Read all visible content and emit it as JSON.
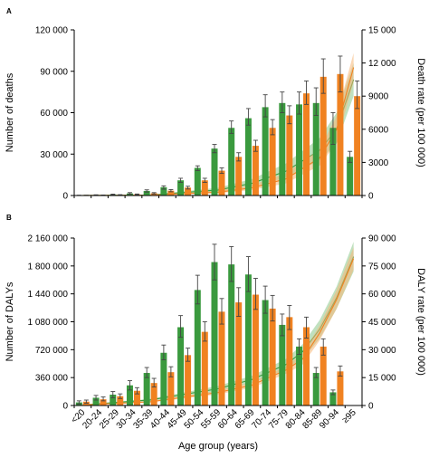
{
  "x_axis": {
    "title": "Age group (years)",
    "categories": [
      "<20",
      "20-24",
      "25-29",
      "30-34",
      "35-39",
      "40-44",
      "45-49",
      "50-54",
      "55-59",
      "60-64",
      "65-69",
      "70-74",
      "75-79",
      "80-84",
      "85-89",
      "90-94",
      "≥95"
    ]
  },
  "colors": {
    "male": "#3a9a3e",
    "female": "#f08221",
    "male_band": "#8cc88a",
    "female_band": "#f7b777"
  },
  "chart_data": [
    {
      "panel": "A",
      "type": "bar",
      "categories": [
        "<20",
        "20-24",
        "25-29",
        "30-34",
        "35-39",
        "40-44",
        "45-49",
        "50-54",
        "55-59",
        "60-64",
        "65-69",
        "70-74",
        "75-79",
        "80-84",
        "85-89",
        "90-94",
        "≥95"
      ],
      "y_left": {
        "label": "Number of deaths",
        "ylim": [
          0,
          120000
        ],
        "ticks": [
          0,
          30000,
          60000,
          90000,
          120000
        ],
        "tick_labels": [
          "0",
          "30 000",
          "60 000",
          "90 000",
          "120 000"
        ]
      },
      "y_right": {
        "label": "Death rate (per 100 000)",
        "ylim": [
          0,
          15000
        ],
        "ticks": [
          0,
          3000,
          6000,
          9000,
          12000,
          15000
        ],
        "tick_labels": [
          "0",
          "3000",
          "6000",
          "9000",
          "12 000",
          "15 000"
        ]
      },
      "series": [
        {
          "color_key": "male",
          "values": [
            100,
            300,
            700,
            1500,
            3300,
            6000,
            11000,
            20000,
            34000,
            49000,
            56000,
            64000,
            67000,
            66000,
            67000,
            49000,
            28000
          ],
          "err_low": [
            50,
            150,
            400,
            900,
            2500,
            4600,
            9500,
            18000,
            31000,
            45000,
            51000,
            57000,
            60000,
            59000,
            58000,
            37000,
            24000
          ],
          "err_high": [
            200,
            500,
            1000,
            2100,
            4100,
            7000,
            12500,
            21500,
            37000,
            54000,
            63000,
            73000,
            75000,
            75000,
            78000,
            60000,
            32000
          ]
        },
        {
          "color_key": "female",
          "values": [
            100,
            200,
            400,
            800,
            1600,
            3500,
            5700,
            11000,
            18000,
            28000,
            36000,
            49000,
            58000,
            74000,
            86000,
            88000,
            72000
          ],
          "err_low": [
            50,
            100,
            250,
            500,
            1100,
            2700,
            4700,
            9500,
            16000,
            25000,
            32000,
            44000,
            52000,
            66000,
            74000,
            75000,
            63000
          ],
          "err_high": [
            200,
            350,
            600,
            1100,
            2100,
            4300,
            6700,
            12500,
            20000,
            31000,
            40000,
            55000,
            65000,
            83000,
            99000,
            101000,
            83000
          ]
        }
      ],
      "rate_curves": [
        {
          "color_key": "male",
          "x": [
            0,
            4,
            8,
            10,
            12,
            14,
            15,
            16
          ],
          "y": [
            5,
            50,
            500,
            1100,
            2200,
            4100,
            6000,
            10500
          ],
          "band_low": [
            0,
            30,
            350,
            800,
            1600,
            3200,
            4700,
            9000
          ],
          "band_high": [
            15,
            80,
            700,
            1500,
            2900,
            5200,
            7500,
            12000
          ]
        },
        {
          "color_key": "female",
          "x": [
            0,
            4,
            8,
            10,
            12,
            14,
            15,
            16
          ],
          "y": [
            5,
            30,
            300,
            700,
            1500,
            3400,
            6000,
            11600
          ],
          "band_low": [
            0,
            20,
            200,
            500,
            1100,
            2700,
            4800,
            10300
          ],
          "band_high": [
            15,
            50,
            450,
            950,
            2000,
            4200,
            7200,
            12900
          ]
        }
      ]
    },
    {
      "panel": "B",
      "type": "bar",
      "categories": [
        "<20",
        "20-24",
        "25-29",
        "30-34",
        "35-39",
        "40-44",
        "45-49",
        "50-54",
        "55-59",
        "60-64",
        "65-69",
        "70-74",
        "75-79",
        "80-84",
        "85-89",
        "90-94",
        "≥95"
      ],
      "y_left": {
        "label": "Number of DALYs",
        "ylim": [
          0,
          2160000
        ],
        "ticks": [
          0,
          360000,
          720000,
          1080000,
          1440000,
          1800000,
          2160000
        ],
        "tick_labels": [
          "0",
          "360 000",
          "720 000",
          "1 080 000",
          "1 440 000",
          "1 800 000",
          "2 160 000"
        ]
      },
      "y_right": {
        "label": "DALY rate (per 100 000)",
        "ylim": [
          0,
          90000
        ],
        "ticks": [
          0,
          15000,
          30000,
          45000,
          60000,
          75000,
          90000
        ],
        "tick_labels": [
          "0",
          "15 000",
          "30 000",
          "45 000",
          "60 000",
          "75 000",
          "90 000"
        ]
      },
      "series": [
        {
          "color_key": "male",
          "values": [
            40000,
            100000,
            140000,
            260000,
            420000,
            680000,
            1010000,
            1490000,
            1850000,
            1820000,
            1690000,
            1360000,
            1040000,
            760000,
            420000,
            170000,
            0
          ],
          "err_low": [
            20000,
            70000,
            100000,
            200000,
            360000,
            590000,
            880000,
            1310000,
            1620000,
            1600000,
            1470000,
            1190000,
            900000,
            660000,
            360000,
            140000,
            0
          ],
          "err_high": [
            60000,
            130000,
            180000,
            320000,
            490000,
            780000,
            1160000,
            1680000,
            2080000,
            2050000,
            1920000,
            1540000,
            1180000,
            860000,
            490000,
            200000,
            0
          ]
        },
        {
          "color_key": "female",
          "values": [
            50000,
            80000,
            120000,
            190000,
            290000,
            430000,
            650000,
            950000,
            1210000,
            1330000,
            1430000,
            1250000,
            1140000,
            1010000,
            760000,
            440000,
            0
          ],
          "err_low": [
            30000,
            60000,
            90000,
            150000,
            240000,
            370000,
            570000,
            830000,
            1050000,
            1150000,
            1240000,
            1090000,
            980000,
            870000,
            650000,
            380000,
            0
          ],
          "err_high": [
            70000,
            110000,
            150000,
            230000,
            350000,
            500000,
            740000,
            1080000,
            1380000,
            1520000,
            1640000,
            1420000,
            1290000,
            1140000,
            860000,
            510000,
            0
          ]
        }
      ],
      "rate_curves": [
        {
          "color_key": "male",
          "x": [
            0,
            4,
            8,
            10,
            12,
            13,
            14,
            15,
            16
          ],
          "y": [
            300,
            3000,
            9000,
            14000,
            22000,
            29000,
            41000,
            58000,
            80000
          ],
          "band_low": [
            200,
            2400,
            7500,
            12000,
            19000,
            25000,
            36000,
            52000,
            72000
          ],
          "band_high": [
            400,
            3600,
            10500,
            16000,
            25000,
            33000,
            46000,
            64000,
            88000
          ]
        },
        {
          "color_key": "female",
          "x": [
            0,
            4,
            8,
            10,
            12,
            13,
            14,
            15,
            16
          ],
          "y": [
            300,
            2000,
            7000,
            11000,
            19000,
            25000,
            39000,
            57000,
            79000
          ],
          "band_low": [
            200,
            1600,
            6000,
            9500,
            17000,
            22000,
            35000,
            52000,
            73000
          ],
          "band_high": [
            400,
            2400,
            8000,
            12500,
            21000,
            28000,
            43000,
            62000,
            85000
          ]
        }
      ]
    }
  ]
}
